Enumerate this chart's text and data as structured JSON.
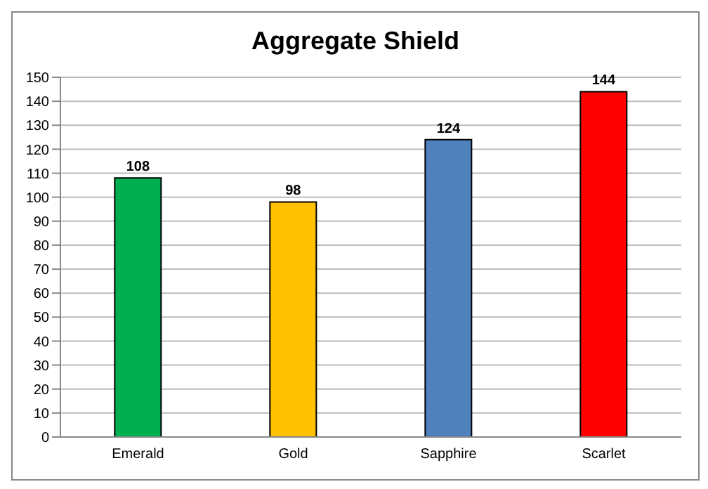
{
  "chart_data": {
    "type": "bar",
    "title": "Aggregate Shield",
    "categories": [
      "Emerald",
      "Gold",
      "Sapphire",
      "Scarlet"
    ],
    "values": [
      108,
      98,
      124,
      144
    ],
    "colors": [
      "#00b050",
      "#ffc000",
      "#4f81bd",
      "#ff0000"
    ],
    "ylim": [
      0,
      150
    ],
    "yticks": [
      0,
      10,
      20,
      30,
      40,
      50,
      60,
      70,
      80,
      90,
      100,
      110,
      120,
      130,
      140,
      150
    ],
    "grid": "y",
    "data_labels": true,
    "legend": false
  }
}
